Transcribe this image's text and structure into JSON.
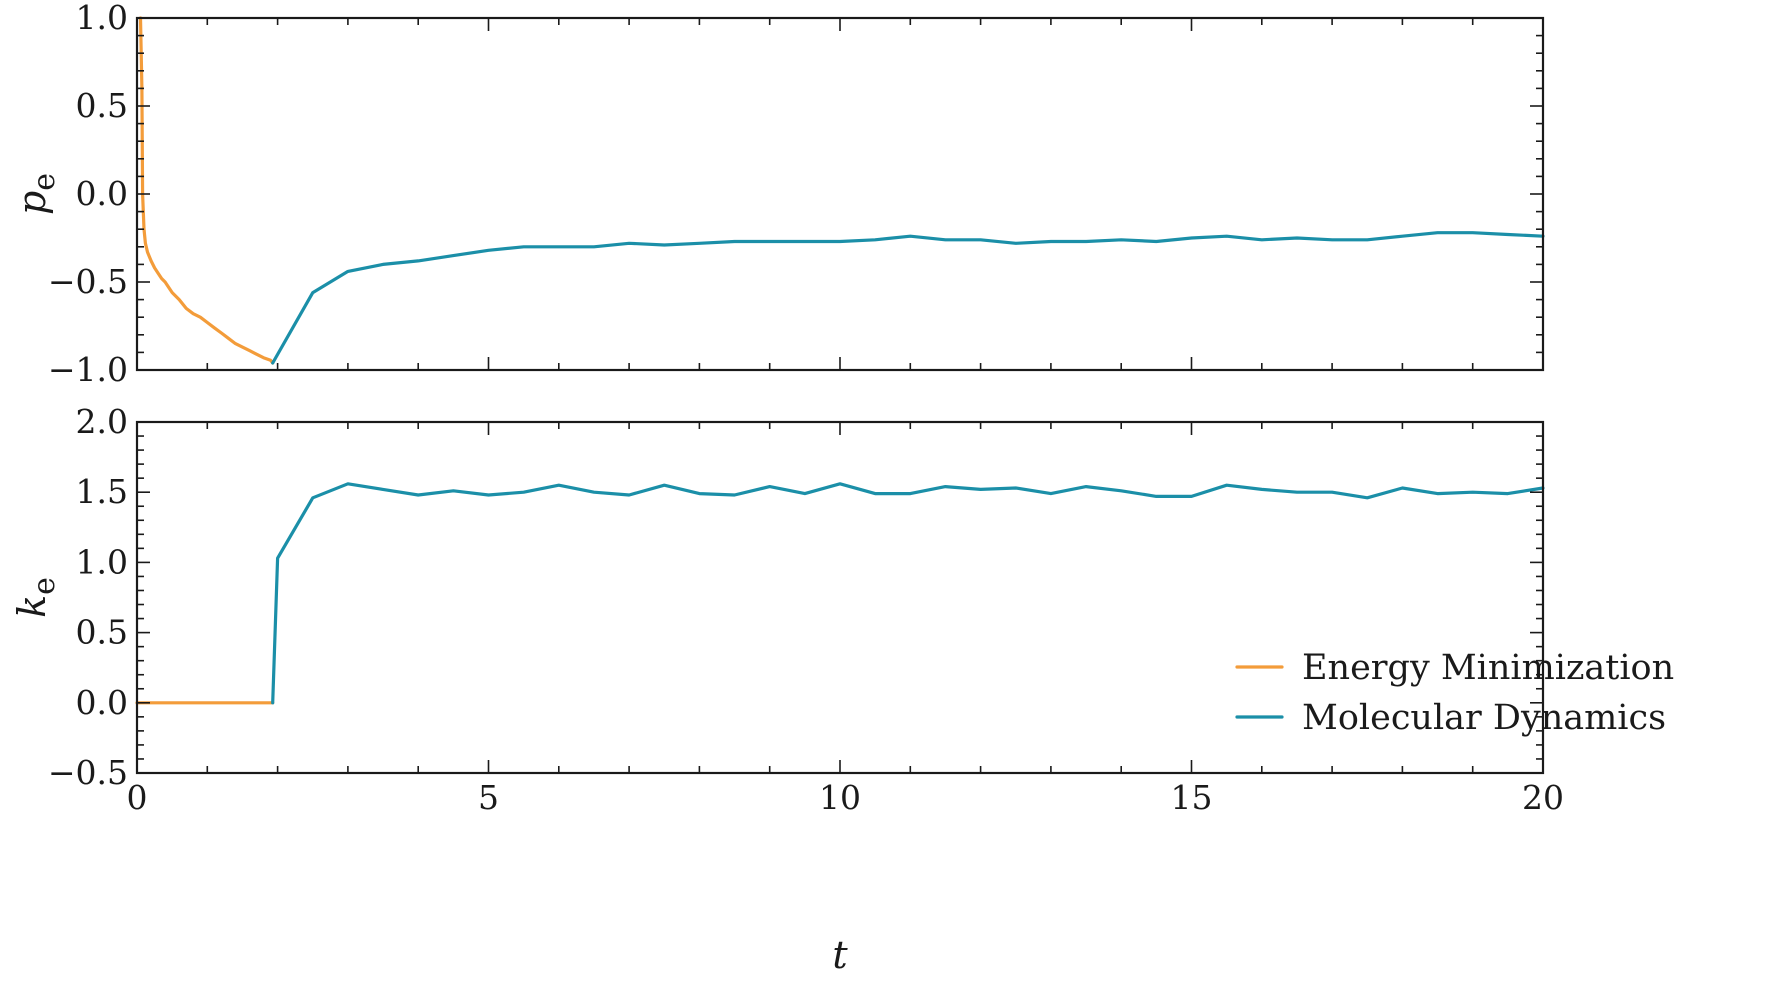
{
  "chart_data": {
    "type": "line",
    "colors": {
      "energy_minimization": "#f39c3a",
      "molecular_dynamics": "#1b8fa8"
    },
    "legend": {
      "placement": "bottom-right",
      "entries": [
        "Energy Minimization",
        "Molecular Dynamics"
      ]
    },
    "xlabel": "t",
    "xlim": [
      0,
      20
    ],
    "xticks": [
      "0",
      "5",
      "10",
      "15",
      "20"
    ],
    "panels": [
      {
        "ylabel_main": "p",
        "ylabel_sub": "e",
        "ylim": [
          -1.0,
          1.0
        ],
        "yticks": [
          -1.0,
          -0.5,
          0.0,
          0.5,
          1.0
        ],
        "ytick_labels": [
          "−1.0",
          "−0.5",
          "0.0",
          "0.5",
          "1.0"
        ],
        "series": [
          {
            "name": "Energy Minimization",
            "x": [
              0.05,
              0.07,
              0.08,
              0.1,
              0.12,
              0.15,
              0.2,
              0.25,
              0.3,
              0.35,
              0.4,
              0.45,
              0.5,
              0.6,
              0.7,
              0.8,
              0.9,
              1.0,
              1.1,
              1.2,
              1.3,
              1.4,
              1.5,
              1.6,
              1.7,
              1.8,
              1.9,
              1.93
            ],
            "y": [
              1.0,
              0.6,
              0.0,
              -0.2,
              -0.28,
              -0.33,
              -0.38,
              -0.42,
              -0.45,
              -0.48,
              -0.5,
              -0.53,
              -0.56,
              -0.6,
              -0.65,
              -0.68,
              -0.7,
              -0.73,
              -0.76,
              -0.79,
              -0.82,
              -0.85,
              -0.87,
              -0.89,
              -0.91,
              -0.93,
              -0.945,
              -0.96
            ]
          },
          {
            "name": "Molecular Dynamics",
            "x": [
              1.93,
              2.5,
              3.0,
              3.5,
              4.0,
              4.5,
              5.0,
              5.5,
              6.0,
              6.5,
              7.0,
              7.5,
              8.0,
              8.5,
              9.0,
              9.5,
              10.0,
              10.5,
              11.0,
              11.5,
              12.0,
              12.5,
              13.0,
              13.5,
              14.0,
              14.5,
              15.0,
              15.5,
              16.0,
              16.5,
              17.0,
              17.5,
              18.0,
              18.5,
              19.0,
              19.5,
              20.0
            ],
            "y": [
              -0.96,
              -0.56,
              -0.44,
              -0.4,
              -0.38,
              -0.35,
              -0.32,
              -0.3,
              -0.3,
              -0.3,
              -0.28,
              -0.29,
              -0.28,
              -0.27,
              -0.27,
              -0.27,
              -0.27,
              -0.26,
              -0.24,
              -0.26,
              -0.26,
              -0.28,
              -0.27,
              -0.27,
              -0.26,
              -0.27,
              -0.25,
              -0.24,
              -0.26,
              -0.25,
              -0.26,
              -0.26,
              -0.24,
              -0.22,
              -0.22,
              -0.23,
              -0.24
            ]
          }
        ]
      },
      {
        "ylabel_main": "k",
        "ylabel_sub": "e",
        "ylim": [
          -0.5,
          2.0
        ],
        "yticks": [
          -0.5,
          0.0,
          0.5,
          1.0,
          1.5,
          2.0
        ],
        "ytick_labels": [
          "−0.5",
          "0.0",
          "0.5",
          "1.0",
          "1.5",
          "2.0"
        ],
        "series": [
          {
            "name": "Energy Minimization",
            "x": [
              0.0,
              1.93
            ],
            "y": [
              0.0,
              0.0
            ]
          },
          {
            "name": "Molecular Dynamics",
            "x": [
              1.93,
              2.0,
              2.5,
              3.0,
              3.5,
              4.0,
              4.5,
              5.0,
              5.5,
              6.0,
              6.5,
              7.0,
              7.5,
              8.0,
              8.5,
              9.0,
              9.5,
              10.0,
              10.5,
              11.0,
              11.5,
              12.0,
              12.5,
              13.0,
              13.5,
              14.0,
              14.5,
              15.0,
              15.5,
              16.0,
              16.5,
              17.0,
              17.5,
              18.0,
              18.5,
              19.0,
              19.5,
              20.0
            ],
            "y": [
              0.0,
              1.03,
              1.46,
              1.56,
              1.52,
              1.48,
              1.51,
              1.48,
              1.5,
              1.55,
              1.5,
              1.48,
              1.55,
              1.49,
              1.48,
              1.54,
              1.49,
              1.56,
              1.49,
              1.49,
              1.54,
              1.52,
              1.53,
              1.49,
              1.54,
              1.51,
              1.47,
              1.47,
              1.55,
              1.52,
              1.5,
              1.5,
              1.46,
              1.53,
              1.49,
              1.5,
              1.49,
              1.53
            ]
          }
        ]
      }
    ]
  }
}
